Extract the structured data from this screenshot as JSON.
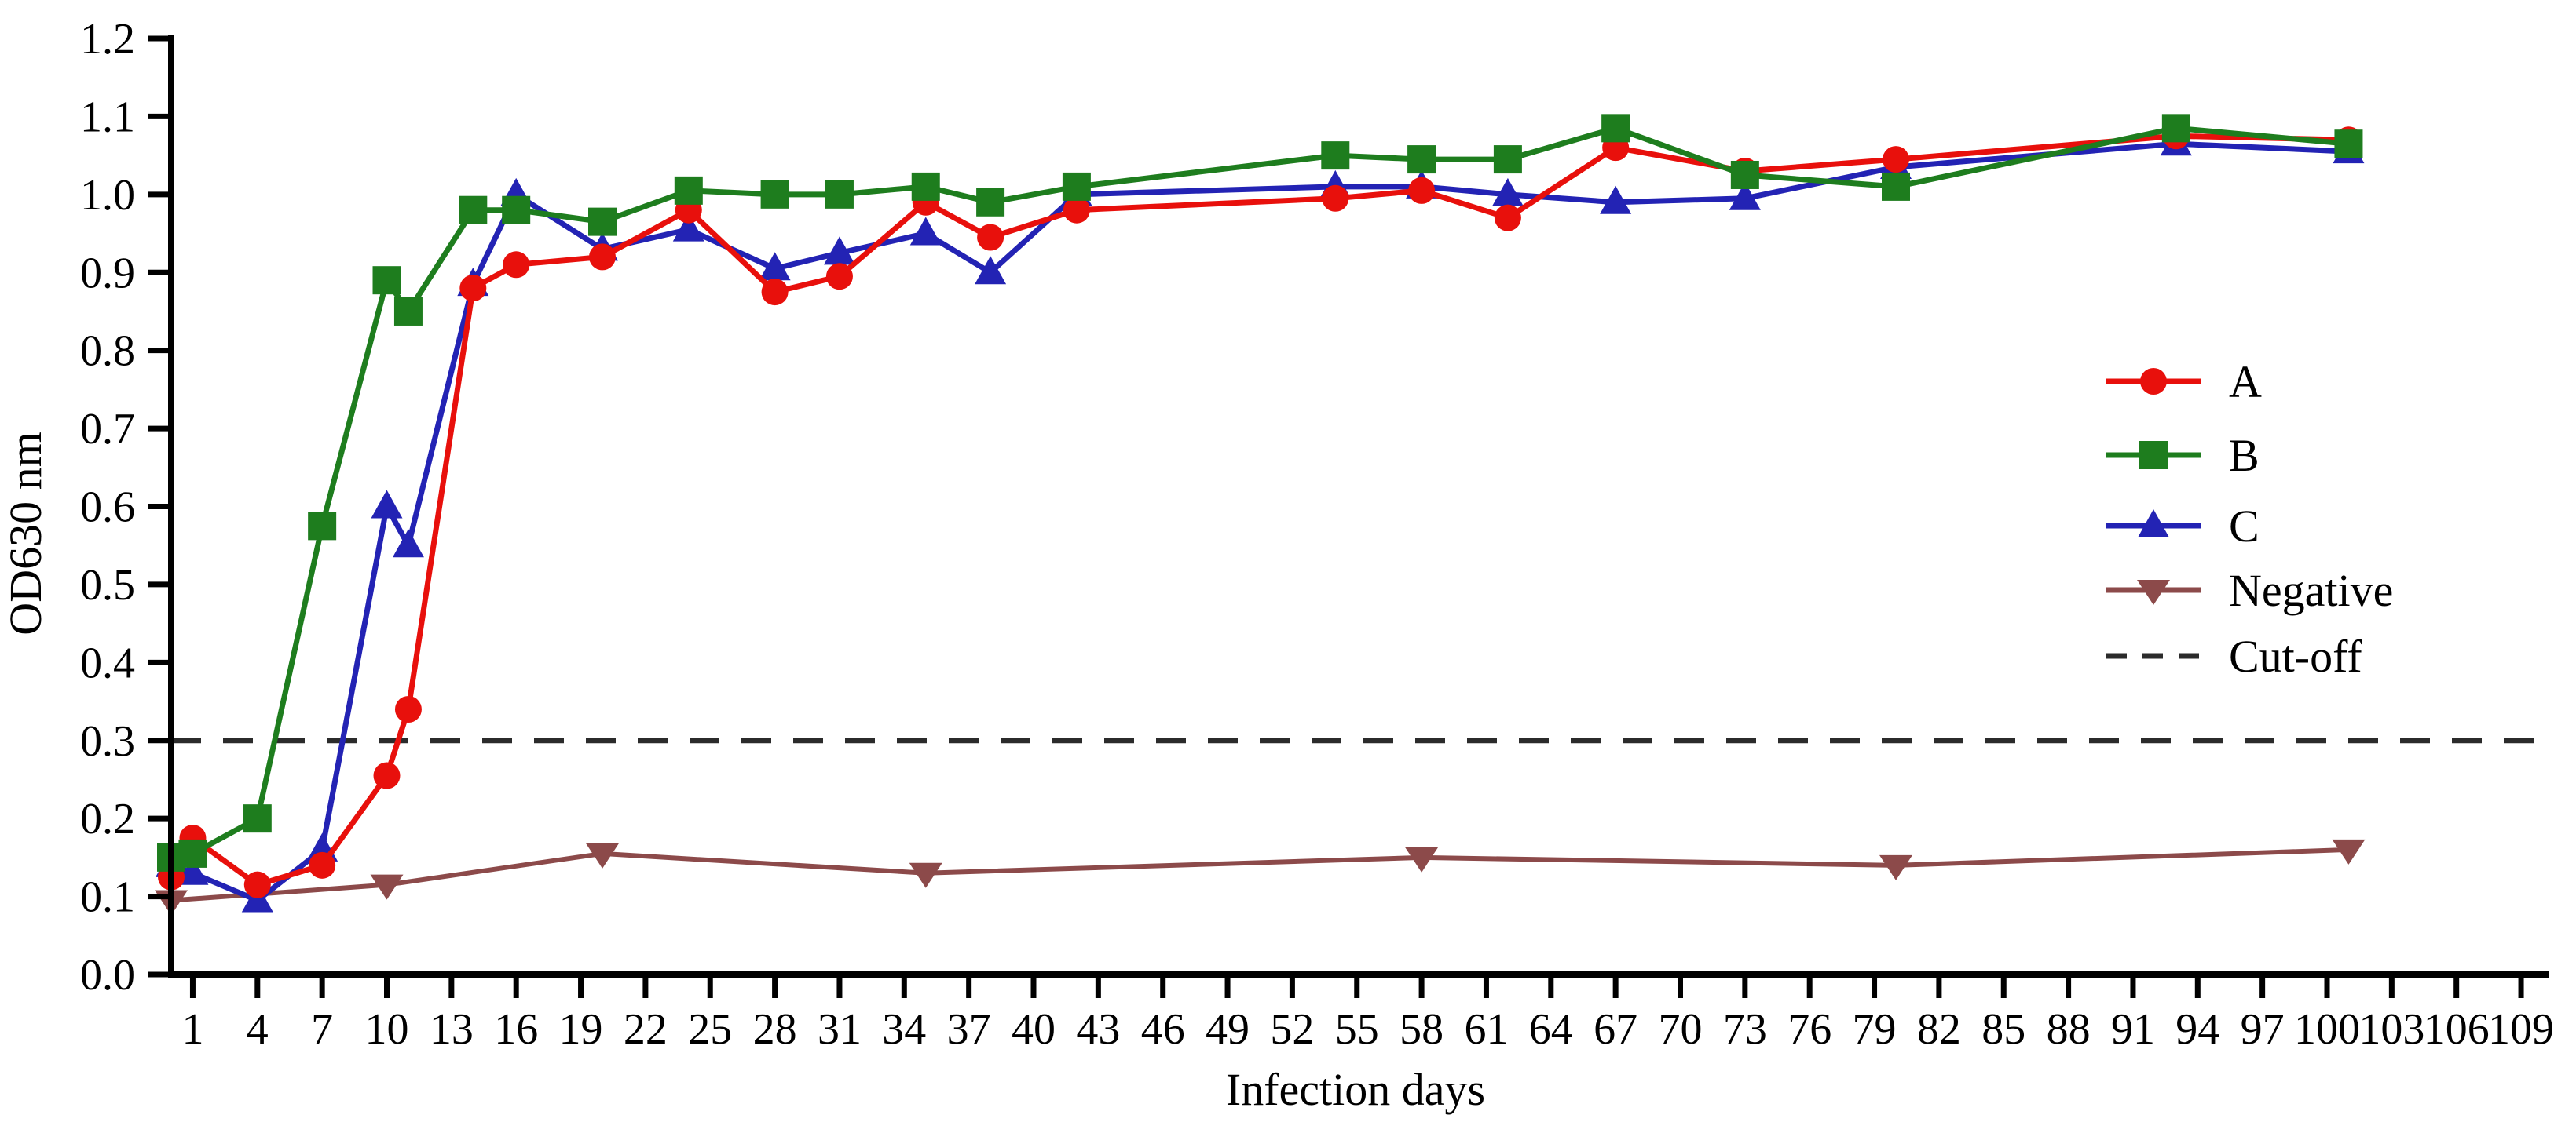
{
  "chart_data": {
    "type": "line",
    "title": "",
    "xlabel": "Infection days",
    "ylabel": "OD630 nm",
    "xlim": [
      0,
      110
    ],
    "ylim": [
      0.0,
      1.2
    ],
    "grid": false,
    "legend_position": "right-center",
    "xticks": [
      1,
      4,
      7,
      10,
      13,
      16,
      19,
      22,
      25,
      28,
      31,
      34,
      37,
      40,
      43,
      46,
      49,
      52,
      55,
      58,
      61,
      64,
      67,
      70,
      73,
      76,
      79,
      82,
      85,
      88,
      91,
      94,
      97,
      100,
      103,
      106,
      109
    ],
    "yticks": [
      "0.0",
      "0.1",
      "0.2",
      "0.3",
      "0.4",
      "0.5",
      "0.6",
      "0.7",
      "0.8",
      "0.9",
      "1.0",
      "1.1",
      "1.2"
    ],
    "cutoff": {
      "label": "Cut-off",
      "value": 0.3,
      "color": "#2b2b2b",
      "style": "dashed"
    },
    "series": [
      {
        "name": "A",
        "color": "#e8100c",
        "marker": "circle",
        "x": [
          0,
          1,
          4,
          7,
          10,
          11,
          14,
          16,
          20,
          24,
          28,
          31,
          35,
          38,
          42,
          54,
          58,
          62,
          67,
          73,
          80,
          93,
          101
        ],
        "y": [
          0.125,
          0.175,
          0.115,
          0.14,
          0.255,
          0.34,
          0.88,
          0.91,
          0.92,
          0.98,
          0.875,
          0.895,
          0.99,
          0.945,
          0.98,
          0.995,
          1.005,
          0.97,
          1.06,
          1.03,
          1.045,
          1.075,
          1.07
        ]
      },
      {
        "name": "B",
        "color": "#1e7d1e",
        "marker": "square",
        "x": [
          0,
          1,
          4,
          7,
          10,
          11,
          14,
          16,
          20,
          24,
          28,
          31,
          35,
          38,
          42,
          54,
          58,
          62,
          67,
          73,
          80,
          93,
          101
        ],
        "y": [
          0.15,
          0.155,
          0.2,
          0.575,
          0.89,
          0.85,
          0.98,
          0.98,
          0.965,
          1.005,
          1.0,
          1.0,
          1.01,
          0.99,
          1.01,
          1.05,
          1.045,
          1.045,
          1.085,
          1.025,
          1.01,
          1.085,
          1.065
        ]
      },
      {
        "name": "C",
        "color": "#2323b4",
        "marker": "triangle-up",
        "x": [
          0,
          1,
          4,
          7,
          10,
          11,
          14,
          16,
          20,
          24,
          28,
          31,
          35,
          38,
          42,
          54,
          58,
          62,
          67,
          73,
          80,
          93,
          101
        ],
        "y": [
          0.14,
          0.13,
          0.095,
          0.16,
          0.6,
          0.55,
          0.885,
          1.0,
          0.93,
          0.955,
          0.905,
          0.925,
          0.95,
          0.9,
          1.0,
          1.01,
          1.01,
          1.0,
          0.99,
          0.995,
          1.035,
          1.065,
          1.055
        ]
      },
      {
        "name": "Negative",
        "color": "#8c4a4a",
        "marker": "triangle-down",
        "x": [
          0,
          10,
          20,
          35,
          58,
          80,
          101
        ],
        "y": [
          0.095,
          0.115,
          0.155,
          0.13,
          0.15,
          0.14,
          0.16
        ]
      }
    ],
    "legend_labels": [
      "A",
      "B",
      "C",
      "Negative",
      "Cut-off"
    ]
  }
}
